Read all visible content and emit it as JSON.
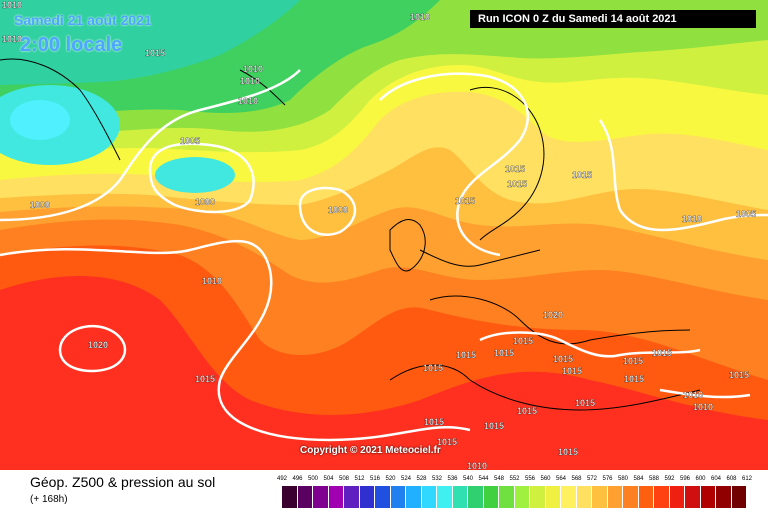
{
  "header": {
    "date": "Samedi 21 août 2021",
    "time": "2:00 locale",
    "run": "Run ICON 0 Z du Samedi 14 août 2021"
  },
  "copyright": "Copyright © 2021 Meteociel.fr",
  "footer": {
    "title": "Géop. Z500 & pression au sol",
    "subtitle": "(+ 168h)"
  },
  "legend": {
    "ticks": [
      "492",
      "496",
      "500",
      "504",
      "508",
      "512",
      "516",
      "520",
      "524",
      "528",
      "532",
      "536",
      "540",
      "544",
      "548",
      "552",
      "556",
      "560",
      "564",
      "568",
      "572",
      "576",
      "580",
      "584",
      "588",
      "592",
      "596",
      "600",
      "604",
      "608",
      "612"
    ],
    "colors": [
      "#3a0030",
      "#5a0060",
      "#80008f",
      "#a000b0",
      "#6020c0",
      "#3030d0",
      "#2050e0",
      "#2080f0",
      "#20b0ff",
      "#30d8ff",
      "#40f0f0",
      "#30e0b0",
      "#30d070",
      "#40d040",
      "#70e040",
      "#a0f040",
      "#d0f040",
      "#f0f040",
      "#fff060",
      "#ffe060",
      "#ffc040",
      "#ffa030",
      "#ff8020",
      "#ff6010",
      "#ff4010",
      "#f02010",
      "#d01010",
      "#b00000",
      "#900000",
      "#700000"
    ]
  },
  "isobar_labels": [
    "1010",
    "1010",
    "1015",
    "1010",
    "1010",
    "1010",
    "1010",
    "1005",
    "1000",
    "1000",
    "1000",
    "1010",
    "1015",
    "1015",
    "1015",
    "1015",
    "1010",
    "1005",
    "1020",
    "1020",
    "1015",
    "1015",
    "1015",
    "1015",
    "1015",
    "1015",
    "1015",
    "1015",
    "1015",
    "1015",
    "1015",
    "1015",
    "1015",
    "1015",
    "1015",
    "1010",
    "1010",
    "1010",
    "1015",
    "1015"
  ]
}
